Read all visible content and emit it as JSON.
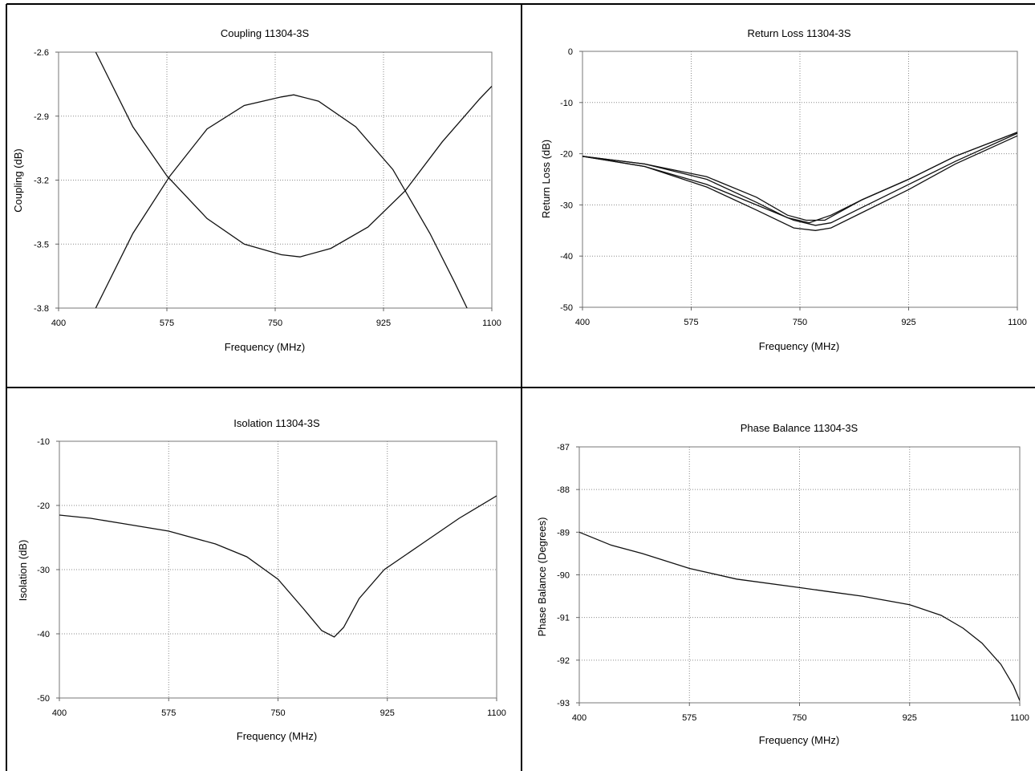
{
  "chart_data": [
    {
      "type": "line",
      "title": "Coupling 11304-3S",
      "xlabel": "Frequency (MHz)",
      "ylabel": "Coupling (dB)",
      "xlim": [
        400,
        1100
      ],
      "ylim": [
        -3.8,
        -2.6
      ],
      "x_ticks": [
        "400",
        "575",
        "750",
        "925",
        "1100"
      ],
      "y_ticks": [
        "-2.6",
        "-2.9",
        "-3.2",
        "-3.5",
        "-3.8"
      ],
      "grid": true,
      "series": [
        {
          "x": [
            460,
            520,
            580,
            640,
            700,
            760,
            780,
            820,
            880,
            940,
            1000,
            1040,
            1060
          ],
          "values": [
            -3.8,
            -3.45,
            -3.18,
            -2.96,
            -2.85,
            -2.81,
            -2.8,
            -2.83,
            -2.95,
            -3.15,
            -3.45,
            -3.68,
            -3.8
          ]
        },
        {
          "x": [
            460,
            520,
            575,
            640,
            700,
            760,
            790,
            840,
            900,
            960,
            1020,
            1080,
            1100
          ],
          "values": [
            -2.6,
            -2.95,
            -3.18,
            -3.38,
            -3.5,
            -3.55,
            -3.56,
            -3.52,
            -3.42,
            -3.25,
            -3.02,
            -2.82,
            -2.76
          ]
        }
      ]
    },
    {
      "type": "line",
      "title": "Return Loss 11304-3S",
      "xlabel": "Frequency (MHz)",
      "ylabel": "Return Loss (dB)",
      "xlim": [
        400,
        1100
      ],
      "ylim": [
        -50,
        0
      ],
      "x_ticks": [
        "400",
        "575",
        "750",
        "925",
        "1100"
      ],
      "y_ticks": [
        "0",
        "-10",
        "-20",
        "-30",
        "-40",
        "-50"
      ],
      "grid": true,
      "series": [
        {
          "x": [
            400,
            500,
            600,
            680,
            740,
            775,
            800,
            850,
            925,
            1000,
            1100
          ],
          "values": [
            -20.5,
            -22.5,
            -26.5,
            -31,
            -34.5,
            -35,
            -34.5,
            -31.5,
            -27,
            -22,
            -16.5
          ]
        },
        {
          "x": [
            400,
            500,
            600,
            680,
            740,
            775,
            800,
            850,
            925,
            1000,
            1100
          ],
          "values": [
            -20.5,
            -22.5,
            -26,
            -30,
            -33,
            -34,
            -33.5,
            -30.5,
            -26,
            -21.5,
            -16
          ]
        },
        {
          "x": [
            400,
            500,
            600,
            680,
            730,
            760,
            790,
            850,
            925,
            1000,
            1100
          ],
          "values": [
            -20.5,
            -22,
            -24.5,
            -28.5,
            -32,
            -33,
            -33,
            -29,
            -25,
            -20.5,
            -15.8
          ]
        },
        {
          "x": [
            400,
            500,
            600,
            680,
            730,
            765,
            800,
            850,
            925,
            1000,
            1100
          ],
          "values": [
            -20.5,
            -22,
            -25,
            -29.5,
            -32.5,
            -33.5,
            -32,
            -29,
            -25,
            -20.5,
            -15.8
          ]
        }
      ]
    },
    {
      "type": "line",
      "title": "Isolation 11304-3S",
      "xlabel": "Frequency (MHz)",
      "ylabel": "Isolation (dB)",
      "xlim": [
        400,
        1100
      ],
      "ylim": [
        -50,
        -10
      ],
      "x_ticks": [
        "400",
        "575",
        "750",
        "925",
        "1100"
      ],
      "y_ticks": [
        "-10",
        "-20",
        "-30",
        "-40",
        "-50"
      ],
      "grid": true,
      "series": [
        {
          "x": [
            400,
            450,
            500,
            575,
            650,
            700,
            750,
            790,
            820,
            840,
            855,
            880,
            920,
            980,
            1040,
            1100
          ],
          "values": [
            -21.5,
            -22,
            -22.8,
            -24,
            -26,
            -28,
            -31.5,
            -36,
            -39.5,
            -40.5,
            -39,
            -34.5,
            -30,
            -26,
            -22,
            -18.5
          ]
        }
      ]
    },
    {
      "type": "line",
      "title": "Phase Balance 11304-3S",
      "xlabel": "Frequency (MHz)",
      "ylabel": "Phase Balance (Degrees)",
      "xlim": [
        400,
        1100
      ],
      "ylim": [
        -93,
        -87
      ],
      "x_ticks": [
        "400",
        "575",
        "750",
        "925",
        "1100"
      ],
      "y_ticks": [
        "-87",
        "-88",
        "-89",
        "-90",
        "-91",
        "-92",
        "-93"
      ],
      "grid": true,
      "series": [
        {
          "x": [
            400,
            450,
            500,
            575,
            650,
            750,
            800,
            850,
            925,
            975,
            1010,
            1040,
            1070,
            1090,
            1100
          ],
          "values": [
            -89.0,
            -89.3,
            -89.5,
            -89.85,
            -90.1,
            -90.3,
            -90.4,
            -90.5,
            -90.7,
            -90.95,
            -91.25,
            -91.6,
            -92.1,
            -92.6,
            -92.95
          ]
        }
      ]
    }
  ]
}
